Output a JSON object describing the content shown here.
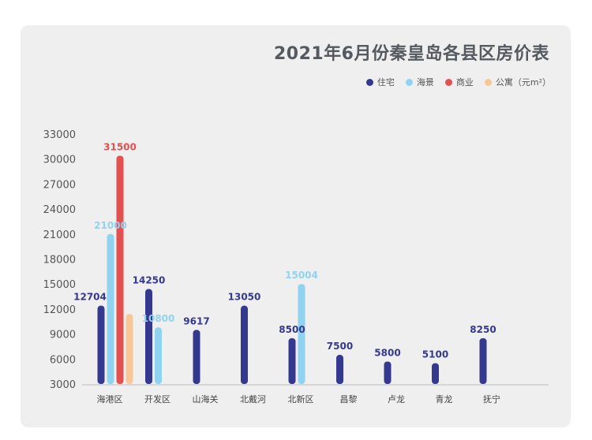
{
  "chart_data": {
    "type": "bar",
    "title": "2021年6月份秦皇岛各县区房价表",
    "categories": [
      "海港区",
      "开发区",
      "山海关",
      "北戴河",
      "北新区",
      "昌黎",
      "卢龙",
      "青龙",
      "抚宁"
    ],
    "ylim": [
      3000,
      33000
    ],
    "yticks": [
      3000,
      6000,
      9000,
      12000,
      15000,
      18000,
      21000,
      24000,
      27000,
      30000,
      33000
    ],
    "grid": false,
    "legend_position": "top-right",
    "series": [
      {
        "name": "住宅",
        "color": "#34398f",
        "values": [
          12704,
          14250,
          9617,
          13050,
          8500,
          7500,
          5800,
          5100,
          8250
        ],
        "bar_values": [
          12400,
          14400,
          9500,
          12400,
          8500,
          6500,
          5700,
          5500,
          8500
        ]
      },
      {
        "name": "海景",
        "color": "#8fd3f0",
        "values": [
          21000,
          10800,
          null,
          null,
          15004,
          null,
          null,
          null,
          null
        ],
        "bar_values": [
          21000,
          9800,
          null,
          null,
          15000,
          null,
          null,
          null,
          null
        ]
      },
      {
        "name": "商业",
        "color": "#e2504f",
        "values": [
          31500,
          null,
          null,
          null,
          null,
          null,
          null,
          null,
          null
        ],
        "bar_values": [
          30400,
          null,
          null,
          null,
          null,
          null,
          null,
          null,
          null
        ]
      },
      {
        "name": "公寓（元m²）",
        "color": "#f6c898",
        "values": [
          null,
          null,
          null,
          null,
          null,
          null,
          null,
          null,
          null
        ],
        "bar_values": [
          11400,
          null,
          null,
          null,
          null,
          null,
          null,
          null,
          null
        ]
      }
    ],
    "data_labels": [
      {
        "series": 0,
        "category": 0,
        "text": "12704"
      },
      {
        "series": 1,
        "category": 0,
        "text": "21000"
      },
      {
        "series": 2,
        "category": 0,
        "text": "31500"
      },
      {
        "series": 0,
        "category": 1,
        "text": "14250"
      },
      {
        "series": 1,
        "category": 1,
        "text": "10800"
      },
      {
        "series": 0,
        "category": 2,
        "text": "9617"
      },
      {
        "series": 0,
        "category": 3,
        "text": "13050"
      },
      {
        "series": 0,
        "category": 4,
        "text": "8500"
      },
      {
        "series": 1,
        "category": 4,
        "text": "15004"
      },
      {
        "series": 0,
        "category": 5,
        "text": "7500"
      },
      {
        "series": 0,
        "category": 6,
        "text": "5800"
      },
      {
        "series": 0,
        "category": 7,
        "text": "5100"
      },
      {
        "series": 0,
        "category": 8,
        "text": "8250"
      }
    ]
  }
}
